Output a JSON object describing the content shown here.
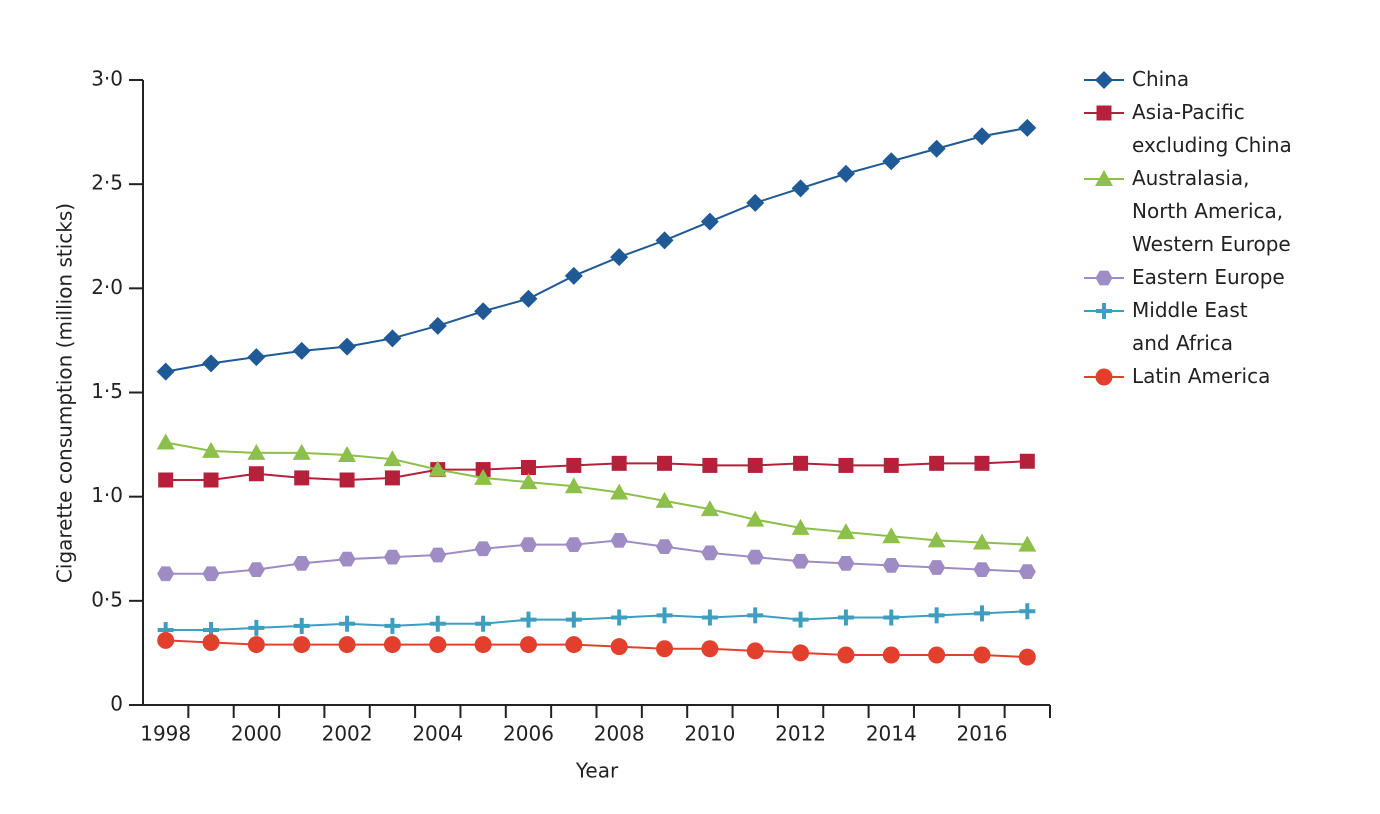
{
  "chart_data": {
    "type": "line",
    "categories": [
      "1998",
      null,
      "2000",
      null,
      "2002",
      null,
      "2004",
      null,
      "2006",
      null,
      "2008",
      null,
      "2010",
      null,
      "2012",
      null,
      "2014",
      null,
      "2016",
      null
    ],
    "x_label": "Year",
    "y_label": "Cigarette consumption (million sticks)",
    "ylim": [
      0,
      3
    ],
    "yticks": [
      0,
      {
        "value": 0.5,
        "label": "0·5"
      },
      {
        "value": 1,
        "label": "1·0"
      },
      {
        "value": 1.5,
        "label": "1·5"
      },
      {
        "value": 2,
        "label": "2·0"
      },
      {
        "value": 2.5,
        "label": "2·5"
      },
      {
        "value": 3,
        "label": "3·0"
      }
    ],
    "grid": false,
    "legend": "right",
    "series": [
      {
        "name": "China",
        "color": "#1f5a96",
        "marker": "diamond",
        "values": [
          1.6,
          1.64,
          1.67,
          1.7,
          1.72,
          1.76,
          1.82,
          1.89,
          1.95,
          2.06,
          2.15,
          2.23,
          2.32,
          2.41,
          2.48,
          2.55,
          2.61,
          2.67,
          2.73,
          2.77
        ]
      },
      {
        "name": "Asia-Pacific\nexcluding China",
        "color": "#b5213b",
        "marker": "square",
        "values": [
          1.08,
          1.08,
          1.11,
          1.09,
          1.08,
          1.09,
          1.13,
          1.13,
          1.14,
          1.15,
          1.16,
          1.16,
          1.15,
          1.15,
          1.16,
          1.15,
          1.15,
          1.16,
          1.16,
          1.17
        ]
      },
      {
        "name": "Australasia,\nNorth America,\nWestern Europe",
        "color": "#8dc04a",
        "marker": "triangle",
        "values": [
          1.26,
          1.22,
          1.21,
          1.21,
          1.2,
          1.18,
          1.13,
          1.09,
          1.07,
          1.05,
          1.02,
          0.98,
          0.94,
          0.89,
          0.85,
          0.83,
          0.81,
          0.79,
          0.78,
          0.77
        ]
      },
      {
        "name": "Eastern Europe",
        "color": "#a08cc4",
        "marker": "hexagon",
        "values": [
          0.63,
          0.63,
          0.65,
          0.68,
          0.7,
          0.71,
          0.72,
          0.75,
          0.77,
          0.77,
          0.79,
          0.76,
          0.73,
          0.71,
          0.69,
          0.68,
          0.67,
          0.66,
          0.65,
          0.64
        ]
      },
      {
        "name": "Middle East\nand Africa",
        "color": "#3d9ebf",
        "marker": "plus",
        "values": [
          0.36,
          0.36,
          0.37,
          0.38,
          0.39,
          0.38,
          0.39,
          0.39,
          0.41,
          0.41,
          0.42,
          0.43,
          0.42,
          0.43,
          0.41,
          0.42,
          0.42,
          0.43,
          0.44,
          0.45
        ]
      },
      {
        "name": "Latin America",
        "color": "#e2402c",
        "marker": "circle",
        "values": [
          0.31,
          0.3,
          0.29,
          0.29,
          0.29,
          0.29,
          0.29,
          0.29,
          0.29,
          0.29,
          0.28,
          0.27,
          0.27,
          0.26,
          0.25,
          0.24,
          0.24,
          0.24,
          0.24,
          0.23
        ]
      }
    ]
  }
}
